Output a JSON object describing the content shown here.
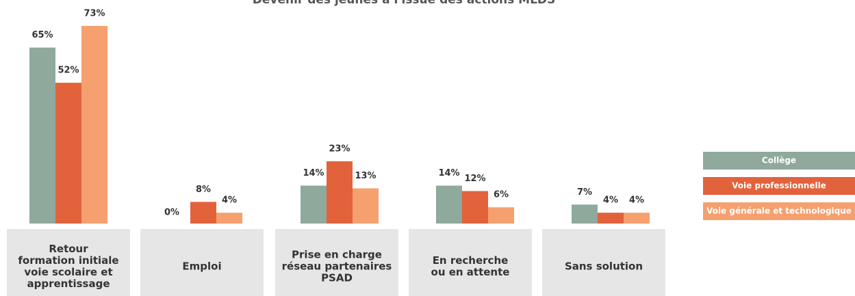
{
  "chart_data": {
    "type": "bar",
    "title": "Devenir des jeunes à l'issue des actions MLDS",
    "categories": [
      [
        "Retour",
        "formation initiale",
        "voie scolaire et",
        "apprentissage"
      ],
      [
        "Emploi"
      ],
      [
        "Prise en charge",
        "réseau partenaires",
        "PSAD"
      ],
      [
        "En recherche",
        "ou en attente"
      ],
      [
        "Sans solution"
      ]
    ],
    "series": [
      {
        "name": "Collège",
        "color": "#8fa99c",
        "values": [
          65,
          0,
          14,
          14,
          7
        ],
        "value_labels": [
          "65%",
          "0%",
          "14%",
          "14%",
          "7%"
        ]
      },
      {
        "name": "Voie professionnelle",
        "color": "#e2623c",
        "values": [
          52,
          8,
          23,
          12,
          4
        ],
        "value_labels": [
          "52%",
          "8%",
          "23%",
          "12%",
          "4%"
        ]
      },
      {
        "name": "Voie générale et technologique",
        "color": "#f6a06f",
        "values": [
          73,
          4,
          13,
          6,
          4
        ],
        "value_labels": [
          "73%",
          "4%",
          "13%",
          "6%",
          "4%"
        ]
      }
    ],
    "legend": "right"
  }
}
